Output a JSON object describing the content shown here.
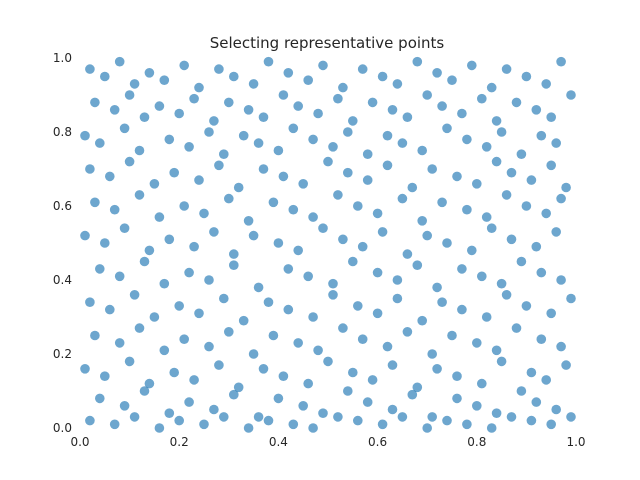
{
  "chart_data": {
    "type": "scatter",
    "title": "Selecting representative points",
    "xlabel": "",
    "ylabel": "",
    "xlim": [
      0,
      1
    ],
    "ylim": [
      0,
      1
    ],
    "grid": false,
    "point_color": "#1f77b4",
    "point_alpha": 0.65,
    "xticks": [
      0.0,
      0.2,
      0.4,
      0.6,
      0.8,
      1.0
    ],
    "yticks": [
      0.0,
      0.2,
      0.4,
      0.6,
      0.8,
      1.0
    ],
    "xtick_labels": [
      "0.0",
      "0.2",
      "0.4",
      "0.6",
      "0.8",
      "1.0"
    ],
    "ytick_labels": [
      "0.0",
      "0.2",
      "0.4",
      "0.6",
      "0.8",
      "1.0"
    ],
    "series": [
      {
        "x": [
          0.02,
          0.05,
          0.08,
          0.11,
          0.14,
          0.17,
          0.21,
          0.24,
          0.28,
          0.31,
          0.35,
          0.38,
          0.42,
          0.46,
          0.49,
          0.53,
          0.57,
          0.61,
          0.64,
          0.68,
          0.72,
          0.75,
          0.79,
          0.83,
          0.86,
          0.9,
          0.94,
          0.97,
          0.03,
          0.07,
          0.1,
          0.13,
          0.16,
          0.2,
          0.23,
          0.27,
          0.3,
          0.34,
          0.37,
          0.41,
          0.44,
          0.48,
          0.52,
          0.55,
          0.59,
          0.63,
          0.66,
          0.7,
          0.73,
          0.77,
          0.81,
          0.84,
          0.88,
          0.92,
          0.95,
          0.99,
          0.01,
          0.04,
          0.09,
          0.12,
          0.18,
          0.22,
          0.26,
          0.29,
          0.33,
          0.36,
          0.4,
          0.43,
          0.47,
          0.51,
          0.54,
          0.58,
          0.62,
          0.65,
          0.69,
          0.74,
          0.78,
          0.82,
          0.85,
          0.89,
          0.93,
          0.96,
          0.02,
          0.06,
          0.1,
          0.15,
          0.19,
          0.24,
          0.28,
          0.32,
          0.37,
          0.41,
          0.45,
          0.5,
          0.54,
          0.58,
          0.62,
          0.67,
          0.71,
          0.76,
          0.8,
          0.84,
          0.87,
          0.91,
          0.95,
          0.98,
          0.03,
          0.07,
          0.12,
          0.16,
          0.21,
          0.25,
          0.3,
          0.34,
          0.39,
          0.43,
          0.47,
          0.52,
          0.56,
          0.6,
          0.65,
          0.69,
          0.73,
          0.78,
          0.82,
          0.86,
          0.9,
          0.94,
          0.97,
          0.01,
          0.05,
          0.09,
          0.14,
          0.18,
          0.23,
          0.27,
          0.31,
          0.35,
          0.4,
          0.44,
          0.49,
          0.53,
          0.57,
          0.61,
          0.66,
          0.7,
          0.74,
          0.79,
          0.83,
          0.87,
          0.92,
          0.96,
          0.04,
          0.08,
          0.13,
          0.17,
          0.22,
          0.26,
          0.31,
          0.36,
          0.42,
          0.46,
          0.51,
          0.55,
          0.6,
          0.64,
          0.68,
          0.72,
          0.77,
          0.81,
          0.85,
          0.89,
          0.93,
          0.97,
          0.02,
          0.06,
          0.11,
          0.15,
          0.2,
          0.24,
          0.29,
          0.33,
          0.38,
          0.42,
          0.47,
          0.51,
          0.56,
          0.6,
          0.64,
          0.69,
          0.73,
          0.77,
          0.82,
          0.86,
          0.9,
          0.95,
          0.99,
          0.03,
          0.08,
          0.12,
          0.17,
          0.21,
          0.26,
          0.3,
          0.35,
          0.39,
          0.44,
          0.48,
          0.53,
          0.57,
          0.62,
          0.66,
          0.71,
          0.75,
          0.8,
          0.84,
          0.88,
          0.93,
          0.97,
          0.01,
          0.05,
          0.1,
          0.14,
          0.19,
          0.23,
          0.28,
          0.32,
          0.37,
          0.41,
          0.46,
          0.5,
          0.55,
          0.59,
          0.63,
          0.68,
          0.72,
          0.76,
          0.81,
          0.85,
          0.91,
          0.94,
          0.98,
          0.04,
          0.09,
          0.13,
          0.18,
          0.22,
          0.27,
          0.31,
          0.36,
          0.4,
          0.45,
          0.49,
          0.54,
          0.58,
          0.63,
          0.67,
          0.71,
          0.76,
          0.8,
          0.84,
          0.89,
          0.92,
          0.96,
          0.02,
          0.07,
          0.11,
          0.16,
          0.2,
          0.25,
          0.29,
          0.34,
          0.38,
          0.43,
          0.47,
          0.52,
          0.56,
          0.61,
          0.65,
          0.7,
          0.74,
          0.78,
          0.83,
          0.87,
          0.91,
          0.95,
          0.99
        ],
        "y": [
          0.97,
          0.95,
          0.99,
          0.93,
          0.96,
          0.94,
          0.98,
          0.92,
          0.97,
          0.95,
          0.93,
          0.99,
          0.96,
          0.94,
          0.98,
          0.92,
          0.97,
          0.95,
          0.93,
          0.99,
          0.96,
          0.94,
          0.98,
          0.92,
          0.97,
          0.95,
          0.93,
          0.99,
          0.88,
          0.86,
          0.9,
          0.84,
          0.87,
          0.85,
          0.89,
          0.83,
          0.88,
          0.86,
          0.84,
          0.9,
          0.87,
          0.85,
          0.89,
          0.83,
          0.88,
          0.86,
          0.84,
          0.9,
          0.87,
          0.85,
          0.89,
          0.83,
          0.88,
          0.86,
          0.84,
          0.9,
          0.79,
          0.77,
          0.81,
          0.75,
          0.78,
          0.76,
          0.8,
          0.74,
          0.79,
          0.77,
          0.75,
          0.81,
          0.78,
          0.76,
          0.8,
          0.74,
          0.79,
          0.77,
          0.75,
          0.81,
          0.78,
          0.76,
          0.8,
          0.74,
          0.79,
          0.77,
          0.7,
          0.68,
          0.72,
          0.66,
          0.69,
          0.67,
          0.71,
          0.65,
          0.7,
          0.68,
          0.66,
          0.72,
          0.69,
          0.67,
          0.71,
          0.65,
          0.7,
          0.68,
          0.66,
          0.72,
          0.69,
          0.67,
          0.71,
          0.65,
          0.61,
          0.59,
          0.63,
          0.57,
          0.6,
          0.58,
          0.62,
          0.56,
          0.61,
          0.59,
          0.57,
          0.63,
          0.6,
          0.58,
          0.62,
          0.56,
          0.61,
          0.59,
          0.57,
          0.63,
          0.6,
          0.58,
          0.62,
          0.52,
          0.5,
          0.54,
          0.48,
          0.51,
          0.49,
          0.53,
          0.47,
          0.52,
          0.5,
          0.48,
          0.54,
          0.51,
          0.49,
          0.53,
          0.47,
          0.52,
          0.5,
          0.48,
          0.54,
          0.51,
          0.49,
          0.53,
          0.43,
          0.41,
          0.45,
          0.39,
          0.42,
          0.4,
          0.44,
          0.38,
          0.43,
          0.41,
          0.39,
          0.45,
          0.42,
          0.4,
          0.44,
          0.38,
          0.43,
          0.41,
          0.39,
          0.45,
          0.42,
          0.4,
          0.34,
          0.32,
          0.36,
          0.3,
          0.33,
          0.31,
          0.35,
          0.29,
          0.34,
          0.32,
          0.3,
          0.36,
          0.33,
          0.31,
          0.35,
          0.29,
          0.34,
          0.32,
          0.3,
          0.36,
          0.33,
          0.31,
          0.35,
          0.25,
          0.23,
          0.27,
          0.21,
          0.24,
          0.22,
          0.26,
          0.2,
          0.25,
          0.23,
          0.21,
          0.27,
          0.24,
          0.22,
          0.26,
          0.2,
          0.25,
          0.23,
          0.21,
          0.27,
          0.24,
          0.22,
          0.16,
          0.14,
          0.18,
          0.12,
          0.15,
          0.13,
          0.17,
          0.11,
          0.16,
          0.14,
          0.12,
          0.18,
          0.15,
          0.13,
          0.17,
          0.11,
          0.16,
          0.14,
          0.12,
          0.18,
          0.15,
          0.13,
          0.17,
          0.08,
          0.06,
          0.1,
          0.04,
          0.07,
          0.05,
          0.09,
          0.03,
          0.08,
          0.06,
          0.04,
          0.1,
          0.07,
          0.05,
          0.09,
          0.03,
          0.08,
          0.06,
          0.04,
          0.1,
          0.07,
          0.05,
          0.02,
          0.01,
          0.03,
          0.0,
          0.02,
          0.01,
          0.03,
          0.0,
          0.02,
          0.01,
          0.0,
          0.03,
          0.02,
          0.01,
          0.03,
          0.0,
          0.02,
          0.01,
          0.0,
          0.03,
          0.02,
          0.01,
          0.03
        ]
      }
    ]
  }
}
